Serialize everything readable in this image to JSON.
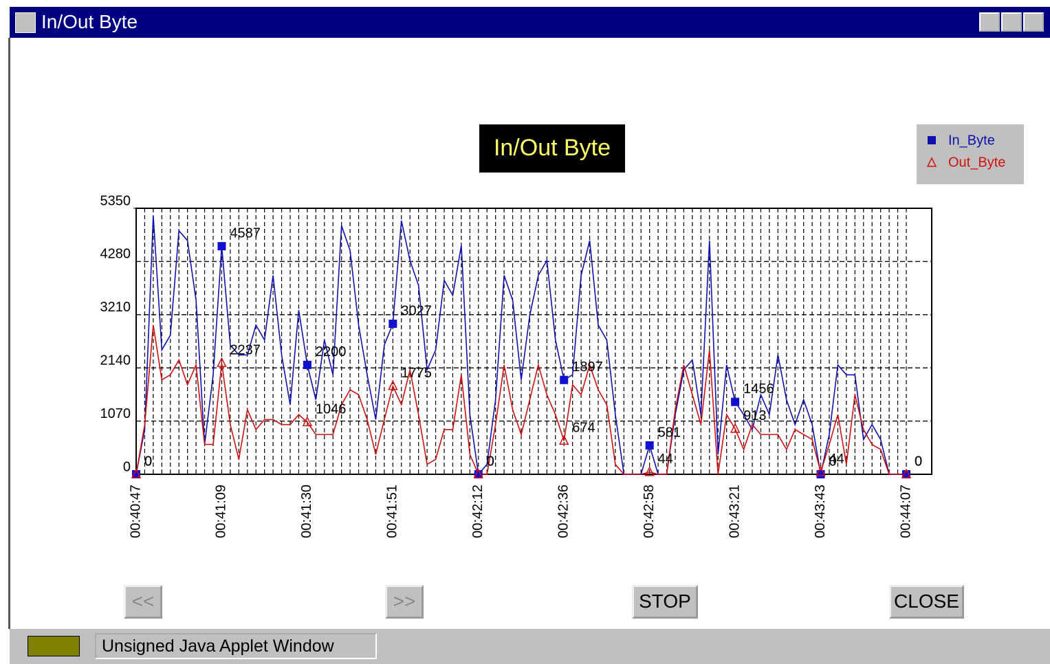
{
  "window": {
    "title": "In/Out Byte"
  },
  "chart_data": {
    "type": "line",
    "title": "In/Out Byte",
    "categories": [
      "00:40:47",
      null,
      null,
      null,
      null,
      null,
      null,
      null,
      null,
      null,
      "00:41:09",
      null,
      null,
      null,
      null,
      null,
      null,
      null,
      null,
      null,
      "00:41:30",
      null,
      null,
      null,
      null,
      null,
      null,
      null,
      null,
      null,
      "00:41:51",
      null,
      null,
      null,
      null,
      null,
      null,
      null,
      null,
      null,
      "00:42:12",
      null,
      null,
      null,
      null,
      null,
      null,
      null,
      null,
      null,
      "00:42:36",
      null,
      null,
      null,
      null,
      null,
      null,
      null,
      null,
      null,
      "00:42:58",
      null,
      null,
      null,
      null,
      null,
      null,
      null,
      null,
      null,
      "00:43:21",
      null,
      null,
      null,
      null,
      null,
      null,
      null,
      null,
      null,
      "00:43:43",
      null,
      null,
      null,
      null,
      null,
      null,
      null,
      null,
      null,
      "00:44:07"
    ],
    "series": [
      {
        "name": "In_Byte",
        "color": "#1010b0",
        "values": [
          0,
          900,
          5200,
          2500,
          2800,
          4900,
          4700,
          3500,
          600,
          2000,
          4587,
          2600,
          2400,
          2400,
          3000,
          2700,
          4000,
          2400,
          1400,
          3300,
          2200,
          1500,
          2700,
          2000,
          5000,
          4500,
          3000,
          2000,
          1100,
          2600,
          3027,
          5100,
          4300,
          3800,
          2100,
          2500,
          3900,
          3600,
          4600,
          1200,
          0,
          200,
          1500,
          4000,
          3500,
          1900,
          3200,
          4000,
          4300,
          2700,
          1897,
          2000,
          4000,
          4700,
          3000,
          2700,
          1200,
          0,
          0,
          0,
          581,
          0,
          0,
          1200,
          2100,
          2300,
          1200,
          4700,
          400,
          2200,
          1456,
          1200,
          900,
          1600,
          1200,
          2400,
          1500,
          1000,
          1500,
          1000,
          0,
          800,
          2200,
          2000,
          2000,
          700,
          1000,
          700,
          0,
          0,
          0
        ]
      },
      {
        "name": "Out_Byte",
        "color": "#d01010",
        "values": [
          0,
          1000,
          3000,
          1900,
          2000,
          2300,
          1800,
          2200,
          600,
          600,
          2237,
          1000,
          300,
          1300,
          900,
          1100,
          1100,
          1000,
          1000,
          1200,
          1046,
          800,
          800,
          800,
          1400,
          1700,
          1600,
          1100,
          400,
          1100,
          1775,
          1400,
          2100,
          1200,
          200,
          300,
          900,
          900,
          2000,
          400,
          0,
          0,
          1000,
          2200,
          1300,
          800,
          1500,
          2200,
          1600,
          1200,
          674,
          1800,
          1600,
          2200,
          1700,
          1400,
          200,
          0,
          0,
          0,
          44,
          0,
          0,
          1300,
          2200,
          1600,
          1000,
          2500,
          0,
          1200,
          913,
          500,
          1000,
          800,
          800,
          800,
          500,
          900,
          800,
          700,
          44,
          600,
          1200,
          200,
          1600,
          900,
          600,
          500,
          0,
          0,
          0
        ]
      }
    ],
    "ylim": [
      0,
      5350
    ],
    "yticks": [
      0,
      1070,
      2140,
      3210,
      4280,
      5350
    ],
    "grid": true,
    "legend": "top-right"
  },
  "buttons": [
    "<<",
    ">>",
    "STOP",
    "CLOSE"
  ],
  "status_bar": {
    "text": "Unsigned Java Applet Window"
  }
}
